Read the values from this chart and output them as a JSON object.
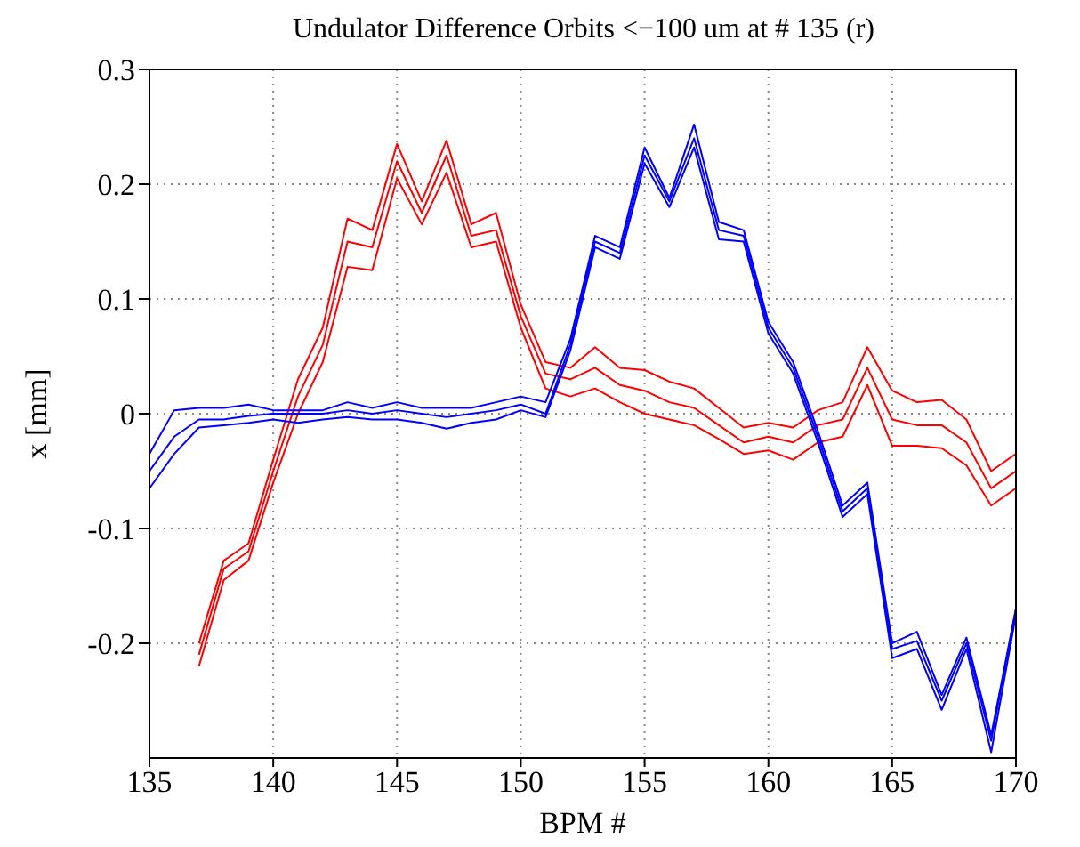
{
  "chart_data": {
    "type": "line",
    "title": "Undulator Difference Orbits <−100 um at # 135 (r)",
    "xlabel": "BPM #",
    "ylabel": "x [mm]",
    "x": [
      135,
      136,
      137,
      138,
      139,
      140,
      141,
      142,
      143,
      144,
      145,
      146,
      147,
      148,
      149,
      150,
      151,
      152,
      153,
      154,
      155,
      156,
      157,
      158,
      159,
      160,
      161,
      162,
      163,
      164,
      165,
      166,
      167,
      168,
      169,
      170
    ],
    "xlim": [
      135,
      170
    ],
    "xticks": [
      135,
      140,
      145,
      150,
      155,
      160,
      165,
      170
    ],
    "ylim": [
      -0.3,
      0.3
    ],
    "yticks": [
      -0.2,
      -0.1,
      0,
      0.1,
      0.2,
      0.3
    ],
    "grid": true,
    "line_style": "solid",
    "marker": "none",
    "series": [
      {
        "color": "#ff0000",
        "values": [
          null,
          null,
          -0.2,
          -0.128,
          -0.113,
          -0.04,
          0.03,
          0.075,
          0.17,
          0.16,
          0.235,
          0.185,
          0.238,
          0.165,
          0.175,
          0.095,
          0.045,
          0.04,
          0.058,
          0.04,
          0.038,
          0.028,
          0.022,
          0.005,
          -0.012,
          -0.008,
          -0.012,
          0.003,
          0.01,
          0.058,
          0.02,
          0.01,
          0.012,
          -0.005,
          -0.05,
          -0.035
        ]
      },
      {
        "color": "#ff0000",
        "values": [
          null,
          null,
          -0.21,
          -0.135,
          -0.12,
          -0.05,
          0.015,
          0.06,
          0.15,
          0.145,
          0.22,
          0.175,
          0.225,
          0.155,
          0.16,
          0.085,
          0.035,
          0.03,
          0.04,
          0.025,
          0.02,
          0.01,
          0.005,
          -0.01,
          -0.025,
          -0.02,
          -0.025,
          -0.01,
          -0.005,
          0.04,
          -0.005,
          -0.01,
          -0.01,
          -0.025,
          -0.065,
          -0.05
        ]
      },
      {
        "color": "#ff0000",
        "values": [
          null,
          null,
          -0.22,
          -0.145,
          -0.128,
          -0.06,
          0.0,
          0.045,
          0.128,
          0.125,
          0.205,
          0.165,
          0.21,
          0.145,
          0.15,
          0.075,
          0.022,
          0.015,
          0.022,
          0.01,
          0.0,
          -0.005,
          -0.01,
          -0.022,
          -0.035,
          -0.032,
          -0.04,
          -0.025,
          -0.02,
          0.025,
          -0.028,
          -0.028,
          -0.03,
          -0.045,
          -0.08,
          -0.065
        ]
      },
      {
        "color": "#0000ff",
        "values": [
          -0.035,
          0.003,
          0.005,
          0.005,
          0.008,
          0.003,
          0.003,
          0.003,
          0.01,
          0.005,
          0.01,
          0.005,
          0.005,
          0.005,
          0.01,
          0.015,
          0.01,
          0.065,
          0.155,
          0.145,
          0.232,
          0.188,
          0.252,
          0.167,
          0.16,
          0.08,
          0.045,
          -0.015,
          -0.08,
          -0.06,
          -0.2,
          -0.19,
          -0.245,
          -0.195,
          -0.28,
          -0.17
        ]
      },
      {
        "color": "#0000ff",
        "values": [
          -0.05,
          -0.02,
          -0.005,
          -0.005,
          -0.002,
          0,
          0,
          0,
          0.003,
          0,
          0.003,
          0,
          -0.003,
          0,
          0.003,
          0.008,
          0,
          0.06,
          0.15,
          0.14,
          0.225,
          0.185,
          0.24,
          0.16,
          0.155,
          0.075,
          0.04,
          -0.02,
          -0.085,
          -0.065,
          -0.205,
          -0.198,
          -0.25,
          -0.2,
          -0.285,
          -0.17
        ]
      },
      {
        "color": "#0000ff",
        "values": [
          -0.065,
          -0.035,
          -0.012,
          -0.01,
          -0.008,
          -0.005,
          -0.008,
          -0.005,
          -0.003,
          -0.005,
          -0.005,
          -0.008,
          -0.013,
          -0.008,
          -0.005,
          0.003,
          -0.003,
          0.055,
          0.145,
          0.135,
          0.218,
          0.18,
          0.232,
          0.152,
          0.15,
          0.07,
          0.035,
          -0.025,
          -0.09,
          -0.07,
          -0.213,
          -0.205,
          -0.258,
          -0.205,
          -0.295,
          -0.175
        ]
      }
    ]
  }
}
